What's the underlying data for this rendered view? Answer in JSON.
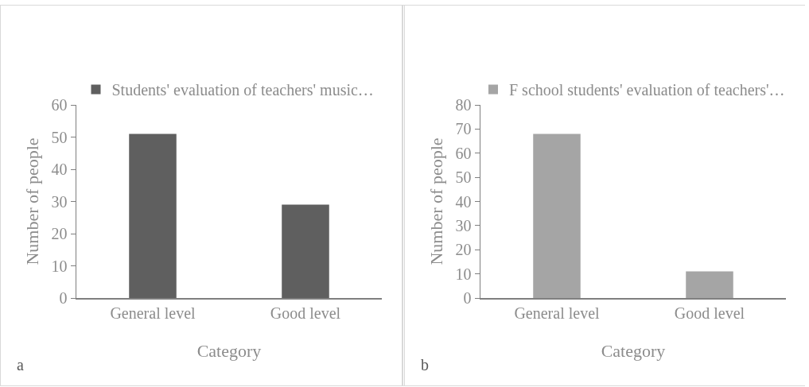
{
  "chart_data": [
    {
      "type": "bar",
      "categories": [
        "General level",
        "Good level"
      ],
      "series": [
        {
          "name": "Students' evaluation of teachers' music…",
          "color": "#5f5f5f",
          "values": [
            51,
            29
          ]
        }
      ],
      "xlabel": "Category",
      "ylabel": "Number of people",
      "ylim": [
        0,
        60
      ],
      "yticks": [
        0,
        10,
        20,
        30,
        40,
        50,
        60
      ],
      "grid": false,
      "legend": "top",
      "annotations": [
        "a"
      ]
    },
    {
      "type": "bar",
      "categories": [
        "General level",
        "Good level"
      ],
      "series": [
        {
          "name": "F school students' evaluation of teachers'…",
          "color": "#a5a5a5",
          "values": [
            68,
            11
          ]
        }
      ],
      "xlabel": "Category",
      "ylabel": "Number of people",
      "ylim": [
        0,
        80
      ],
      "yticks": [
        0,
        10,
        20,
        30,
        40,
        50,
        60,
        70,
        80
      ],
      "grid": false,
      "legend": "top",
      "annotations": [
        "b"
      ]
    }
  ]
}
